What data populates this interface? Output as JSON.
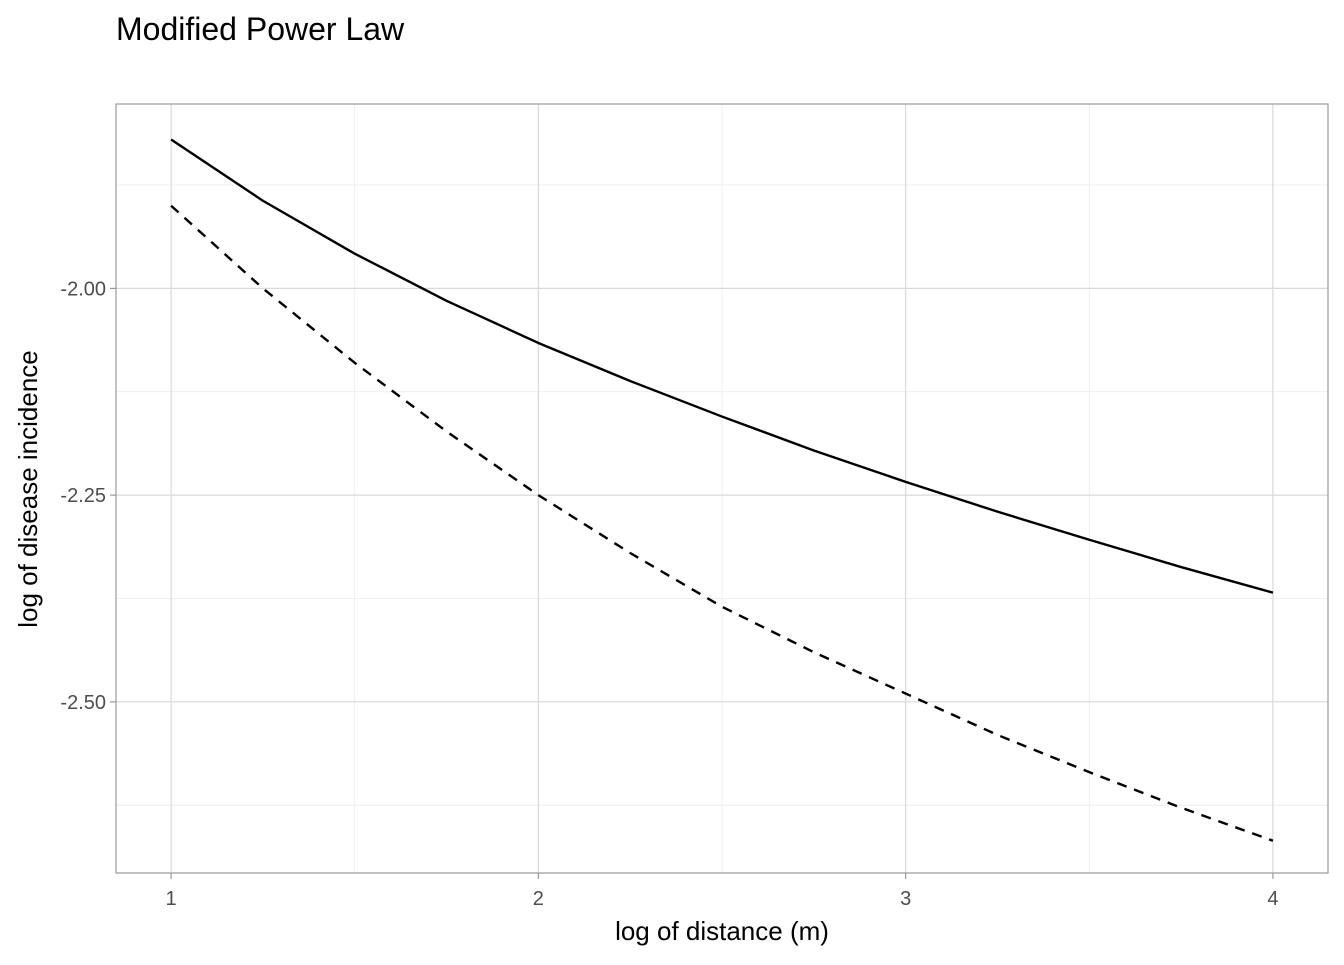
{
  "chart_data": {
    "type": "line",
    "title": "Modified Power Law",
    "xlabel": "log of distance (m)",
    "ylabel": "log of disease incidence",
    "xlim": [
      0.85,
      4.15
    ],
    "ylim": [
      -2.707,
      -1.777
    ],
    "x_ticks": [
      1,
      2,
      3,
      4
    ],
    "x_tick_labels": [
      "1",
      "2",
      "3",
      "4"
    ],
    "y_ticks": [
      -2.5,
      -2.25,
      -2.0
    ],
    "y_tick_labels": [
      "-2.50",
      "-2.25",
      "-2.00"
    ],
    "x_minor_ticks": [
      1.5,
      2.5,
      3.5
    ],
    "y_minor_ticks": [
      -2.625,
      -2.375,
      -2.125,
      -1.875
    ],
    "grid": true,
    "legend": "none",
    "series": [
      {
        "line_style": "solid",
        "color": "#000000",
        "x": [
          1.0,
          1.25,
          1.5,
          1.75,
          2.0,
          2.25,
          2.5,
          2.75,
          3.0,
          3.25,
          3.5,
          3.75,
          4.0
        ],
        "y": [
          -1.82,
          -1.894,
          -1.958,
          -2.015,
          -2.066,
          -2.112,
          -2.155,
          -2.196,
          -2.234,
          -2.27,
          -2.304,
          -2.337,
          -2.368
        ]
      },
      {
        "line_style": "dashed",
        "color": "#000000",
        "x": [
          1.0,
          1.25,
          1.5,
          1.75,
          2.0,
          2.25,
          2.5,
          2.75,
          3.0,
          3.25,
          3.5,
          3.75,
          4.0
        ],
        "y": [
          -1.9,
          -2.0,
          -2.09,
          -2.173,
          -2.25,
          -2.32,
          -2.385,
          -2.44,
          -2.49,
          -2.54,
          -2.585,
          -2.628,
          -2.668
        ]
      }
    ]
  }
}
